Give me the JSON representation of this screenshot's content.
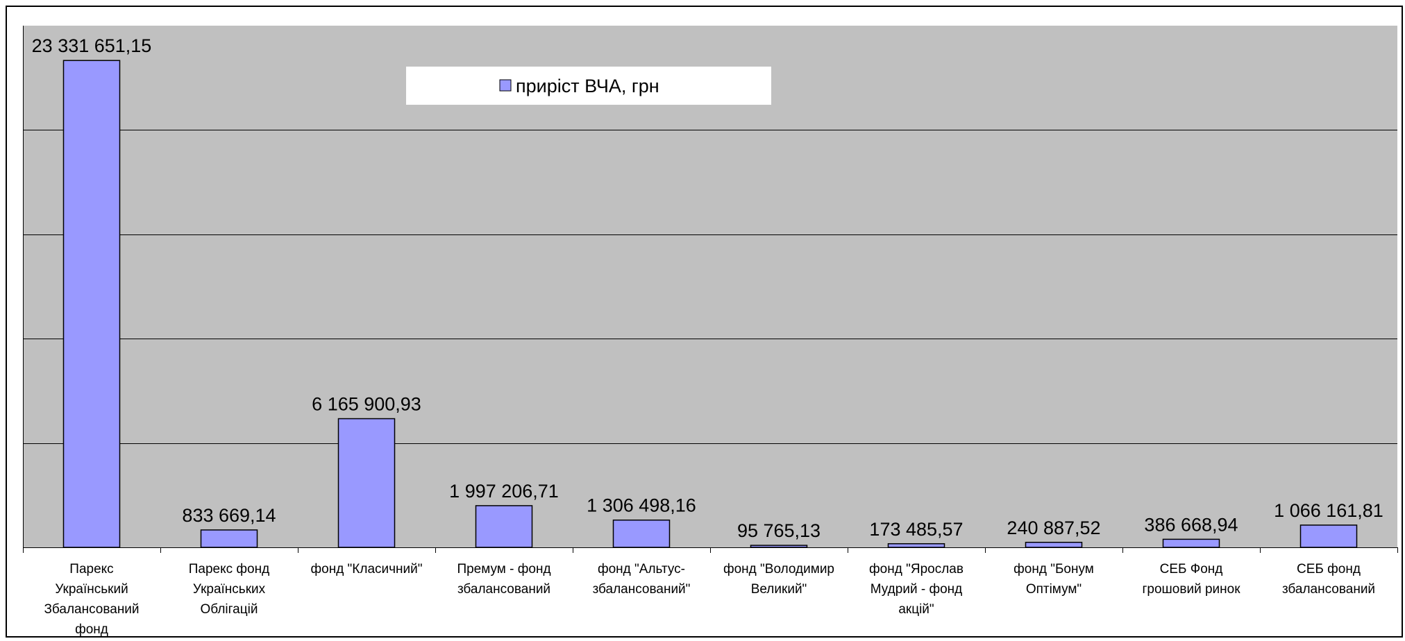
{
  "chart_data": {
    "type": "bar",
    "legend": {
      "label": "приріст ВЧА, грн",
      "position": "top"
    },
    "categories": [
      [
        "Парекс",
        "Український",
        "Збалансований",
        "фонд"
      ],
      [
        "Парекс фонд",
        "Українських",
        "Облігацій"
      ],
      [
        "фонд \"Класичний\""
      ],
      [
        "Премум - фонд",
        "збалансований"
      ],
      [
        "фонд \"Альтус-",
        "збалансований\""
      ],
      [
        "фонд \"Володимир",
        "Великий\""
      ],
      [
        "фонд \"Ярослав",
        "Мудрий - фонд",
        "акцій\""
      ],
      [
        "фонд \"Бонум",
        "Оптімум\""
      ],
      [
        "СЕБ Фонд",
        "грошовий ринок"
      ],
      [
        "СЕБ фонд",
        "збалансований"
      ]
    ],
    "values": [
      23331651.15,
      833669.14,
      6165900.93,
      1997206.71,
      1306498.16,
      95765.13,
      173485.57,
      240887.52,
      386668.94,
      1066161.81
    ],
    "value_labels": [
      "23 331 651,15",
      "833 669,14",
      "6 165 900,93",
      "1 997 206,71",
      "1 306 498,16",
      "95 765,13",
      "173 485,57",
      "240 887,52",
      "386 668,94",
      "1 066 161,81"
    ],
    "ylim": [
      0,
      25000000
    ],
    "gridlines": [
      5000000,
      10000000,
      15000000,
      20000000
    ],
    "grid": true,
    "y_tick_labels_visible": false,
    "colors": {
      "bar": "#9999ff",
      "plot_bg": "#c0c0c0",
      "bar_edge": "#000000",
      "legend_bg": "#ffffff"
    }
  }
}
